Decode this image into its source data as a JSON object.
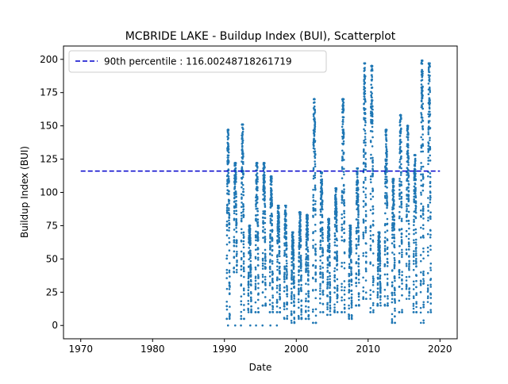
{
  "chart_data": {
    "type": "scatter",
    "title": "MCBRIDE LAKE - Buildup Index (BUI), Scatterplot",
    "xlabel": "Date",
    "ylabel": "Buildup Index (BUI)",
    "xlim": [
      1967.6,
      2022.4
    ],
    "ylim": [
      -10,
      210
    ],
    "x_ticks": [
      1970,
      1980,
      1990,
      2000,
      2010,
      2020
    ],
    "y_ticks": [
      0,
      25,
      50,
      75,
      100,
      125,
      150,
      175,
      200
    ],
    "legend_position": "top-left",
    "grid": false,
    "reference_line": {
      "label": "90th percentile : 116.00248718261719",
      "value": 116.00248718261719,
      "x_range": [
        1970,
        2020
      ],
      "color": "#0000cc",
      "style": "dashed"
    },
    "series": [
      {
        "color": "#1f77b4",
        "seasons": [
          {
            "year": 1990,
            "max": 147,
            "min": 5
          },
          {
            "year": 1991,
            "max": 122,
            "min": 40
          },
          {
            "year": 1992,
            "max": 151,
            "min": 5
          },
          {
            "year": 1993,
            "max": 75,
            "min": 10
          },
          {
            "year": 1994,
            "max": 122,
            "min": 10
          },
          {
            "year": 1995,
            "max": 122,
            "min": 15
          },
          {
            "year": 1996,
            "max": 112,
            "min": 10
          },
          {
            "year": 1997,
            "max": 90,
            "min": 10
          },
          {
            "year": 1998,
            "max": 90,
            "min": 5
          },
          {
            "year": 1999,
            "max": 70,
            "min": 2
          },
          {
            "year": 2000,
            "max": 85,
            "min": 5
          },
          {
            "year": 2001,
            "max": 83,
            "min": 5
          },
          {
            "year": 2002,
            "max": 170,
            "min": 2
          },
          {
            "year": 2003,
            "max": 115,
            "min": 10
          },
          {
            "year": 2004,
            "max": 80,
            "min": 8
          },
          {
            "year": 2005,
            "max": 103,
            "min": 10
          },
          {
            "year": 2006,
            "max": 170,
            "min": 10
          },
          {
            "year": 2007,
            "max": 75,
            "min": 5
          },
          {
            "year": 2008,
            "max": 118,
            "min": 15
          },
          {
            "year": 2009,
            "max": 197,
            "min": 20
          },
          {
            "year": 2010,
            "max": 195,
            "min": 10
          },
          {
            "year": 2011,
            "max": 70,
            "min": 15
          },
          {
            "year": 2012,
            "max": 147,
            "min": 15
          },
          {
            "year": 2013,
            "max": 110,
            "min": 2
          },
          {
            "year": 2014,
            "max": 158,
            "min": 10
          },
          {
            "year": 2015,
            "max": 150,
            "min": 20
          },
          {
            "year": 2016,
            "max": 128,
            "min": 10
          },
          {
            "year": 2017,
            "max": 199,
            "min": 2
          },
          {
            "year": 2018,
            "max": 197,
            "min": 10
          }
        ],
        "zero_points_x": [
          1990.5,
          1991.5,
          1992.3,
          1993.6,
          1994.4,
          1995.3,
          1996.4,
          1997.3
        ]
      }
    ]
  }
}
